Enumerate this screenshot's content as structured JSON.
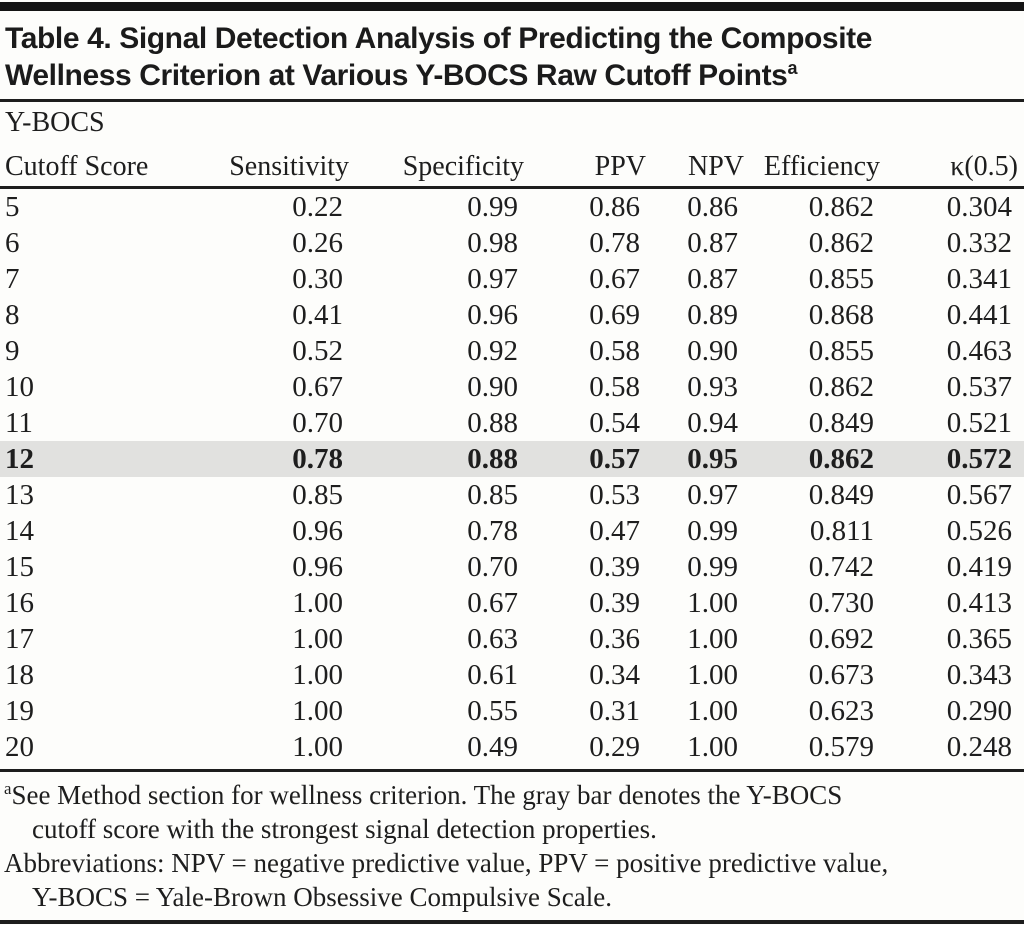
{
  "table": {
    "title_line1": "Table 4. Signal Detection Analysis of Predicting the Composite",
    "title_line2": "Wellness Criterion at Various Y-BOCS Raw Cutoff Points",
    "title_footnote_marker": "a",
    "header": {
      "col1_line1": "Y-BOCS",
      "col1_line2": "Cutoff Score",
      "columns": [
        "Sensitivity",
        "Specificity",
        "PPV",
        "NPV",
        "Efficiency",
        "κ(0.5)"
      ]
    },
    "rows": [
      {
        "cutoff": "5",
        "values": [
          "0.22",
          "0.99",
          "0.86",
          "0.86",
          "0.862",
          "0.304"
        ],
        "highlight": false
      },
      {
        "cutoff": "6",
        "values": [
          "0.26",
          "0.98",
          "0.78",
          "0.87",
          "0.862",
          "0.332"
        ],
        "highlight": false
      },
      {
        "cutoff": "7",
        "values": [
          "0.30",
          "0.97",
          "0.67",
          "0.87",
          "0.855",
          "0.341"
        ],
        "highlight": false
      },
      {
        "cutoff": "8",
        "values": [
          "0.41",
          "0.96",
          "0.69",
          "0.89",
          "0.868",
          "0.441"
        ],
        "highlight": false
      },
      {
        "cutoff": "9",
        "values": [
          "0.52",
          "0.92",
          "0.58",
          "0.90",
          "0.855",
          "0.463"
        ],
        "highlight": false
      },
      {
        "cutoff": "10",
        "values": [
          "0.67",
          "0.90",
          "0.58",
          "0.93",
          "0.862",
          "0.537"
        ],
        "highlight": false
      },
      {
        "cutoff": "11",
        "values": [
          "0.70",
          "0.88",
          "0.54",
          "0.94",
          "0.849",
          "0.521"
        ],
        "highlight": false
      },
      {
        "cutoff": "12",
        "values": [
          "0.78",
          "0.88",
          "0.57",
          "0.95",
          "0.862",
          "0.572"
        ],
        "highlight": true
      },
      {
        "cutoff": "13",
        "values": [
          "0.85",
          "0.85",
          "0.53",
          "0.97",
          "0.849",
          "0.567"
        ],
        "highlight": false
      },
      {
        "cutoff": "14",
        "values": [
          "0.96",
          "0.78",
          "0.47",
          "0.99",
          "0.811",
          "0.526"
        ],
        "highlight": false
      },
      {
        "cutoff": "15",
        "values": [
          "0.96",
          "0.70",
          "0.39",
          "0.99",
          "0.742",
          "0.419"
        ],
        "highlight": false
      },
      {
        "cutoff": "16",
        "values": [
          "1.00",
          "0.67",
          "0.39",
          "1.00",
          "0.730",
          "0.413"
        ],
        "highlight": false
      },
      {
        "cutoff": "17",
        "values": [
          "1.00",
          "0.63",
          "0.36",
          "1.00",
          "0.692",
          "0.365"
        ],
        "highlight": false
      },
      {
        "cutoff": "18",
        "values": [
          "1.00",
          "0.61",
          "0.34",
          "1.00",
          "0.673",
          "0.343"
        ],
        "highlight": false
      },
      {
        "cutoff": "19",
        "values": [
          "1.00",
          "0.55",
          "0.31",
          "1.00",
          "0.623",
          "0.290"
        ],
        "highlight": false
      },
      {
        "cutoff": "20",
        "values": [
          "1.00",
          "0.49",
          "0.29",
          "1.00",
          "0.579",
          "0.248"
        ],
        "highlight": false
      }
    ],
    "footnotes": [
      {
        "marker": "a",
        "lines": [
          "See Method section for wellness criterion. The gray bar denotes the Y-BOCS",
          "cutoff score with the strongest signal detection properties."
        ]
      },
      {
        "marker": "",
        "lines": [
          "Abbreviations: NPV = negative predictive value, PPV = positive predictive value,",
          "Y-BOCS = Yale-Brown Obsessive Compulsive Scale."
        ]
      }
    ],
    "colors": {
      "background": "#fdfdfb",
      "text": "#1e1e1e",
      "rule": "#1d1d1d",
      "highlight_row": "#e1e1df"
    }
  }
}
